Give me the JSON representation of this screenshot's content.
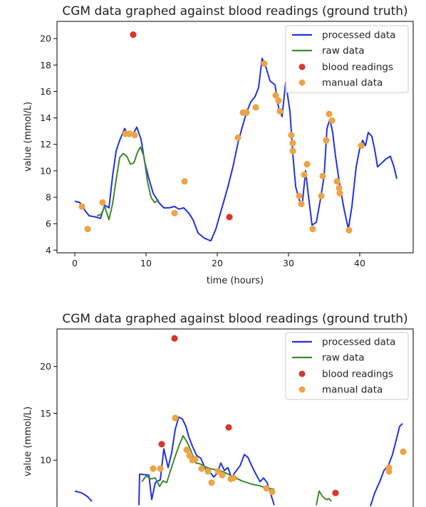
{
  "chart_data": [
    {
      "type": "line",
      "title": "CGM data graphed against blood readings (ground truth)",
      "xlabel": "time (hours)",
      "ylabel": "value (mmol/L)",
      "xlim": [
        -2.5,
        47.5
      ],
      "ylim": [
        3.8,
        21.3
      ],
      "xticks": [
        0,
        10,
        20,
        30,
        40
      ],
      "yticks": [
        4,
        6,
        8,
        10,
        12,
        14,
        16,
        18,
        20
      ],
      "grid": false,
      "legend_position": "top-right",
      "legend": [
        "processed data",
        "raw data",
        "blood readings",
        "manual data"
      ],
      "series": [
        {
          "name": "processed data",
          "kind": "line",
          "color": "#2133e0",
          "points": [
            [
              0,
              7.7
            ],
            [
              0.7,
              7.6
            ],
            [
              1.3,
              7.1
            ],
            [
              2,
              6.6
            ],
            [
              3,
              6.5
            ],
            [
              3.6,
              6.4
            ],
            [
              4.2,
              7.4
            ],
            [
              4.8,
              7.2
            ],
            [
              5.3,
              9.6
            ],
            [
              5.8,
              11.5
            ],
            [
              6.3,
              12.3
            ],
            [
              7,
              13.2
            ],
            [
              7.6,
              12.6
            ],
            [
              8.2,
              12.8
            ],
            [
              8.7,
              13.3
            ],
            [
              9.3,
              12.4
            ],
            [
              9.8,
              10.7
            ],
            [
              10.4,
              9.4
            ],
            [
              11,
              8.3
            ],
            [
              11.8,
              7.6
            ],
            [
              12.5,
              7.2
            ],
            [
              13.2,
              7.2
            ],
            [
              14,
              7.3
            ],
            [
              14.6,
              7.1
            ],
            [
              15.3,
              7.2
            ],
            [
              16,
              6.8
            ],
            [
              16.6,
              6.3
            ],
            [
              17.3,
              5.3
            ],
            [
              18.2,
              4.9
            ],
            [
              19.1,
              4.7
            ],
            [
              19.8,
              5.6
            ],
            [
              20.6,
              7.1
            ],
            [
              21.4,
              8.6
            ],
            [
              22.2,
              10.3
            ],
            [
              22.9,
              12.1
            ],
            [
              23.5,
              13.3
            ],
            [
              24.1,
              14.4
            ],
            [
              24.7,
              15.2
            ],
            [
              25.3,
              15.6
            ],
            [
              25.8,
              16.3
            ],
            [
              26.3,
              18.5
            ],
            [
              26.8,
              17.9
            ],
            [
              27.4,
              16.8
            ],
            [
              28.1,
              16.5
            ],
            [
              28.6,
              14.8
            ],
            [
              29.1,
              14.1
            ],
            [
              29.6,
              16.7
            ],
            [
              30.2,
              14.5
            ],
            [
              30.6,
              11.3
            ],
            [
              31,
              8.8
            ],
            [
              31.5,
              7.8
            ],
            [
              31.9,
              7.3
            ],
            [
              32.4,
              10.0
            ],
            [
              32.8,
              8.1
            ],
            [
              33.3,
              5.9
            ],
            [
              33.9,
              6.1
            ],
            [
              34.5,
              7.9
            ],
            [
              35,
              9.6
            ],
            [
              35.4,
              13.2
            ],
            [
              35.8,
              13.9
            ],
            [
              36.2,
              12.9
            ],
            [
              36.6,
              11.1
            ],
            [
              37.2,
              8.9
            ],
            [
              37.8,
              7.1
            ],
            [
              38.4,
              5.6
            ],
            [
              38.9,
              7.3
            ],
            [
              39.5,
              10.3
            ],
            [
              40,
              11.7
            ],
            [
              40.4,
              12.3
            ],
            [
              40.8,
              11.9
            ],
            [
              41.2,
              12.9
            ],
            [
              41.7,
              12.6
            ],
            [
              42.1,
              11.6
            ],
            [
              42.5,
              10.3
            ],
            [
              43.1,
              10.6
            ],
            [
              43.7,
              10.9
            ],
            [
              44.3,
              11.1
            ],
            [
              44.8,
              10.3
            ],
            [
              45.2,
              9.4
            ]
          ]
        },
        {
          "name": "raw data",
          "kind": "line",
          "color": "#3d8a2c",
          "points": [
            [
              3.1,
              6.6
            ],
            [
              3.7,
              6.7
            ],
            [
              4.2,
              7.3
            ],
            [
              4.8,
              6.3
            ],
            [
              5.3,
              7.5
            ],
            [
              5.8,
              9.3
            ],
            [
              6.3,
              11.0
            ],
            [
              6.8,
              11.3
            ],
            [
              7.3,
              11.1
            ],
            [
              7.8,
              10.5
            ],
            [
              8.3,
              10.6
            ],
            [
              8.8,
              11.4
            ],
            [
              9.2,
              11.8
            ],
            [
              9.7,
              11.1
            ],
            [
              10.2,
              9.2
            ],
            [
              10.7,
              8.0
            ],
            [
              11.2,
              7.6
            ],
            [
              11.8,
              7.8
            ]
          ]
        },
        {
          "name": "blood readings",
          "kind": "scatter",
          "color": "#d7382e",
          "points": [
            [
              8.2,
              20.3
            ],
            [
              21.7,
              6.5
            ]
          ]
        },
        {
          "name": "manual data",
          "kind": "scatter",
          "color": "#eba548",
          "points": [
            [
              1,
              7.3
            ],
            [
              1.8,
              5.6
            ],
            [
              3.9,
              7.6
            ],
            [
              7.1,
              12.8
            ],
            [
              7.7,
              12.8
            ],
            [
              8.4,
              12.7
            ],
            [
              14,
              6.8
            ],
            [
              15.4,
              9.2
            ],
            [
              22.9,
              12.5
            ],
            [
              23.6,
              14.4
            ],
            [
              24.1,
              14.4
            ],
            [
              25.4,
              14.8
            ],
            [
              26.6,
              18.1
            ],
            [
              28.2,
              15.7
            ],
            [
              28.6,
              15.3
            ],
            [
              28.8,
              14.5
            ],
            [
              30.4,
              12.7
            ],
            [
              30.6,
              12.1
            ],
            [
              30.6,
              11.5
            ],
            [
              31.5,
              8.1
            ],
            [
              31.8,
              7.5
            ],
            [
              32.2,
              9.7
            ],
            [
              32.6,
              10.5
            ],
            [
              33.4,
              5.6
            ],
            [
              34.6,
              8.1
            ],
            [
              34.8,
              9.6
            ],
            [
              35.3,
              12.3
            ],
            [
              35.7,
              14.3
            ],
            [
              36.1,
              13.8
            ],
            [
              36.8,
              9.2
            ],
            [
              37.1,
              8.7
            ],
            [
              37.2,
              8.3
            ],
            [
              38.5,
              5.5
            ],
            [
              40.2,
              11.9
            ]
          ]
        }
      ]
    },
    {
      "type": "line",
      "title": "CGM data graphed against blood readings (ground truth)",
      "xlabel": "",
      "ylabel": "value (mmol/L)",
      "xlim": [
        -2.5,
        47.5
      ],
      "ylim": [
        5.0,
        24.0
      ],
      "xticks": [],
      "yticks": [
        10,
        15,
        20
      ],
      "grid": false,
      "legend_position": "top-right",
      "legend": [
        "processed data",
        "raw data",
        "blood readings",
        "manual data"
      ],
      "series": [
        {
          "name": "processed data",
          "kind": "line",
          "color": "#2133e0",
          "points": [
            [
              0,
              6.7
            ],
            [
              1,
              6.5
            ],
            [
              1.8,
              6.1
            ],
            [
              2.4,
              5.6
            ]
          ]
        },
        {
          "name": "processed data",
          "kind": "line",
          "color": "#2133e0",
          "points": [
            [
              9,
              5.2
            ],
            [
              9.1,
              8.5
            ],
            [
              10.4,
              8.4
            ],
            [
              10.8,
              5.8
            ],
            [
              11.3,
              7.6
            ],
            [
              12,
              7.9
            ],
            [
              12.5,
              11.2
            ],
            [
              13.1,
              9.2
            ],
            [
              13.6,
              10.8
            ],
            [
              14.1,
              13.3
            ],
            [
              14.6,
              14.6
            ],
            [
              15.1,
              14.4
            ],
            [
              15.6,
              13.6
            ],
            [
              16,
              12.5
            ],
            [
              16.5,
              11.5
            ],
            [
              17.1,
              10.5
            ],
            [
              17.7,
              10.2
            ],
            [
              18.3,
              9.1
            ],
            [
              18.9,
              8.8
            ],
            [
              19.5,
              8.2
            ],
            [
              20,
              8.6
            ],
            [
              20.5,
              9.7
            ],
            [
              21,
              8.9
            ],
            [
              21.5,
              9.2
            ],
            [
              22,
              8.1
            ],
            [
              22.5,
              8.7
            ],
            [
              23.2,
              9.4
            ],
            [
              23.8,
              10.6
            ],
            [
              24.3,
              10.3
            ],
            [
              24.9,
              9.3
            ],
            [
              25.5,
              8.4
            ],
            [
              26,
              7.7
            ],
            [
              26.5,
              8.1
            ],
            [
              27,
              7.6
            ],
            [
              27.5,
              6.4
            ],
            [
              28,
              5.2
            ]
          ]
        },
        {
          "name": "processed data",
          "kind": "line",
          "color": "#2133e0",
          "points": [
            [
              41.5,
              5.1
            ],
            [
              42.1,
              6.5
            ],
            [
              42.8,
              7.7
            ],
            [
              43.4,
              8.9
            ],
            [
              44,
              9.4
            ],
            [
              44.6,
              10.6
            ],
            [
              45.1,
              12.1
            ],
            [
              45.6,
              13.6
            ],
            [
              46,
              13.9
            ]
          ]
        },
        {
          "name": "raw data",
          "kind": "line",
          "color": "#3d8a2c",
          "points": [
            [
              9.4,
              7.7
            ],
            [
              10,
              8.3
            ],
            [
              10.7,
              8.0
            ],
            [
              11.3,
              8.1
            ],
            [
              11.9,
              7.2
            ],
            [
              12.4,
              7.8
            ],
            [
              12.9,
              7.6
            ],
            [
              13.4,
              8.8
            ],
            [
              14,
              10.2
            ],
            [
              14.6,
              11.5
            ],
            [
              15.2,
              12.6
            ],
            [
              15.8,
              11.9
            ],
            [
              16.4,
              10.8
            ],
            [
              17,
              9.7
            ],
            [
              17.6,
              9.6
            ],
            [
              18.3,
              9.3
            ],
            [
              19,
              9.1
            ],
            [
              19.6,
              9.0
            ],
            [
              20.3,
              8.9
            ],
            [
              21,
              8.7
            ],
            [
              21.8,
              8.4
            ],
            [
              22.6,
              8.1
            ],
            [
              23.4,
              7.8
            ],
            [
              24.2,
              7.6
            ],
            [
              25,
              7.4
            ],
            [
              25.8,
              7.3
            ],
            [
              26.6,
              7.1
            ],
            [
              27.3,
              7.0
            ],
            [
              28,
              6.9
            ]
          ]
        },
        {
          "name": "raw data",
          "kind": "line",
          "color": "#3d8a2c",
          "points": [
            [
              33.9,
              5.2
            ],
            [
              34.3,
              6.7
            ],
            [
              34.8,
              6.1
            ],
            [
              35.3,
              5.8
            ],
            [
              35.7,
              5.9
            ],
            [
              36,
              5.6
            ]
          ]
        },
        {
          "name": "blood readings",
          "kind": "scatter",
          "color": "#d7382e",
          "points": [
            [
              14,
              23
            ],
            [
              12.2,
              11.7
            ],
            [
              21.6,
              13.5
            ],
            [
              36.6,
              6.5
            ]
          ]
        },
        {
          "name": "manual data",
          "kind": "scatter",
          "color": "#eba548",
          "points": [
            [
              11,
              9.1
            ],
            [
              12,
              9.1
            ],
            [
              14.1,
              14.5
            ],
            [
              15.7,
              11.1
            ],
            [
              16.1,
              10.5
            ],
            [
              16.5,
              10.0
            ],
            [
              16.9,
              10.1
            ],
            [
              17.8,
              9.1
            ],
            [
              18.7,
              8.8
            ],
            [
              19.2,
              7.6
            ],
            [
              20.1,
              8.8
            ],
            [
              20.7,
              8.4
            ],
            [
              21.9,
              8.0
            ],
            [
              22.3,
              8.1
            ],
            [
              26.9,
              7.0
            ],
            [
              27.7,
              6.6
            ],
            [
              44.1,
              8.8
            ],
            [
              44.1,
              9.2
            ],
            [
              46.1,
              10.9
            ]
          ]
        }
      ]
    }
  ]
}
